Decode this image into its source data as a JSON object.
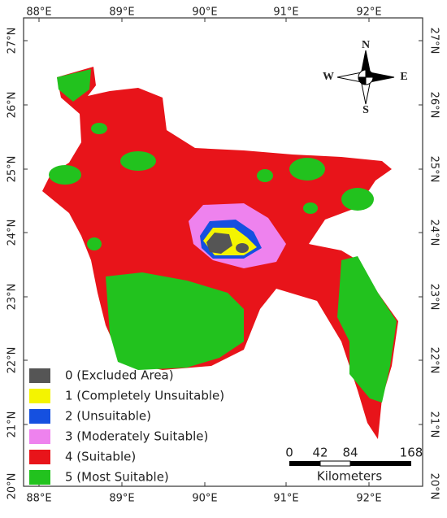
{
  "x_labels": [
    "88°E",
    "89°E",
    "90°E",
    "91°E",
    "92°E"
  ],
  "y_labels": [
    "27°N",
    "26°N",
    "25°N",
    "24°N",
    "23°N",
    "22°N",
    "21°N",
    "20°N"
  ],
  "compass": {
    "north": "N",
    "south": "S",
    "west": "W",
    "east": "E"
  },
  "legend": [
    "0 (Excluded Area)",
    "1 (Completely Unsuitable)",
    "2 (Unsuitable)",
    "3 (Moderately Suitable)",
    "4 (Suitable)",
    "5 (Most Suitable)"
  ],
  "scale": {
    "labels": [
      "0",
      "42",
      "84",
      "168"
    ],
    "unit": "Kilometers"
  }
}
